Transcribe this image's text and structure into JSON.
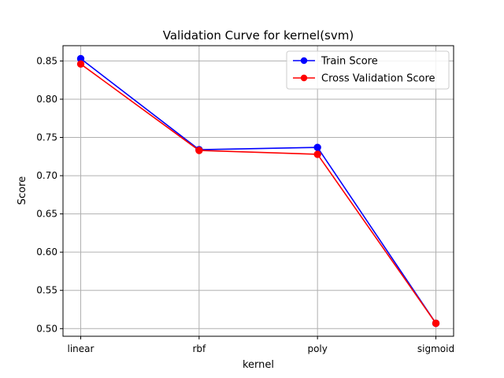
{
  "chart_data": {
    "type": "line",
    "title": "Validation Curve for kernel(svm)",
    "xlabel": "kernel",
    "ylabel": "Score",
    "categories": [
      "linear",
      "rbf",
      "poly",
      "sigmoid"
    ],
    "ylim": [
      0.49,
      0.87
    ],
    "yticks": [
      0.5,
      0.55,
      0.6,
      0.65,
      0.7,
      0.75,
      0.8,
      0.85
    ],
    "grid": true,
    "legend_position": "top-right",
    "series": [
      {
        "name": "Train Score",
        "color": "#0000ff",
        "marker": "circle",
        "values": [
          0.853,
          0.734,
          0.737,
          0.507
        ]
      },
      {
        "name": "Cross Validation Score",
        "color": "#ff0000",
        "marker": "circle",
        "values": [
          0.846,
          0.733,
          0.728,
          0.507
        ]
      }
    ]
  }
}
